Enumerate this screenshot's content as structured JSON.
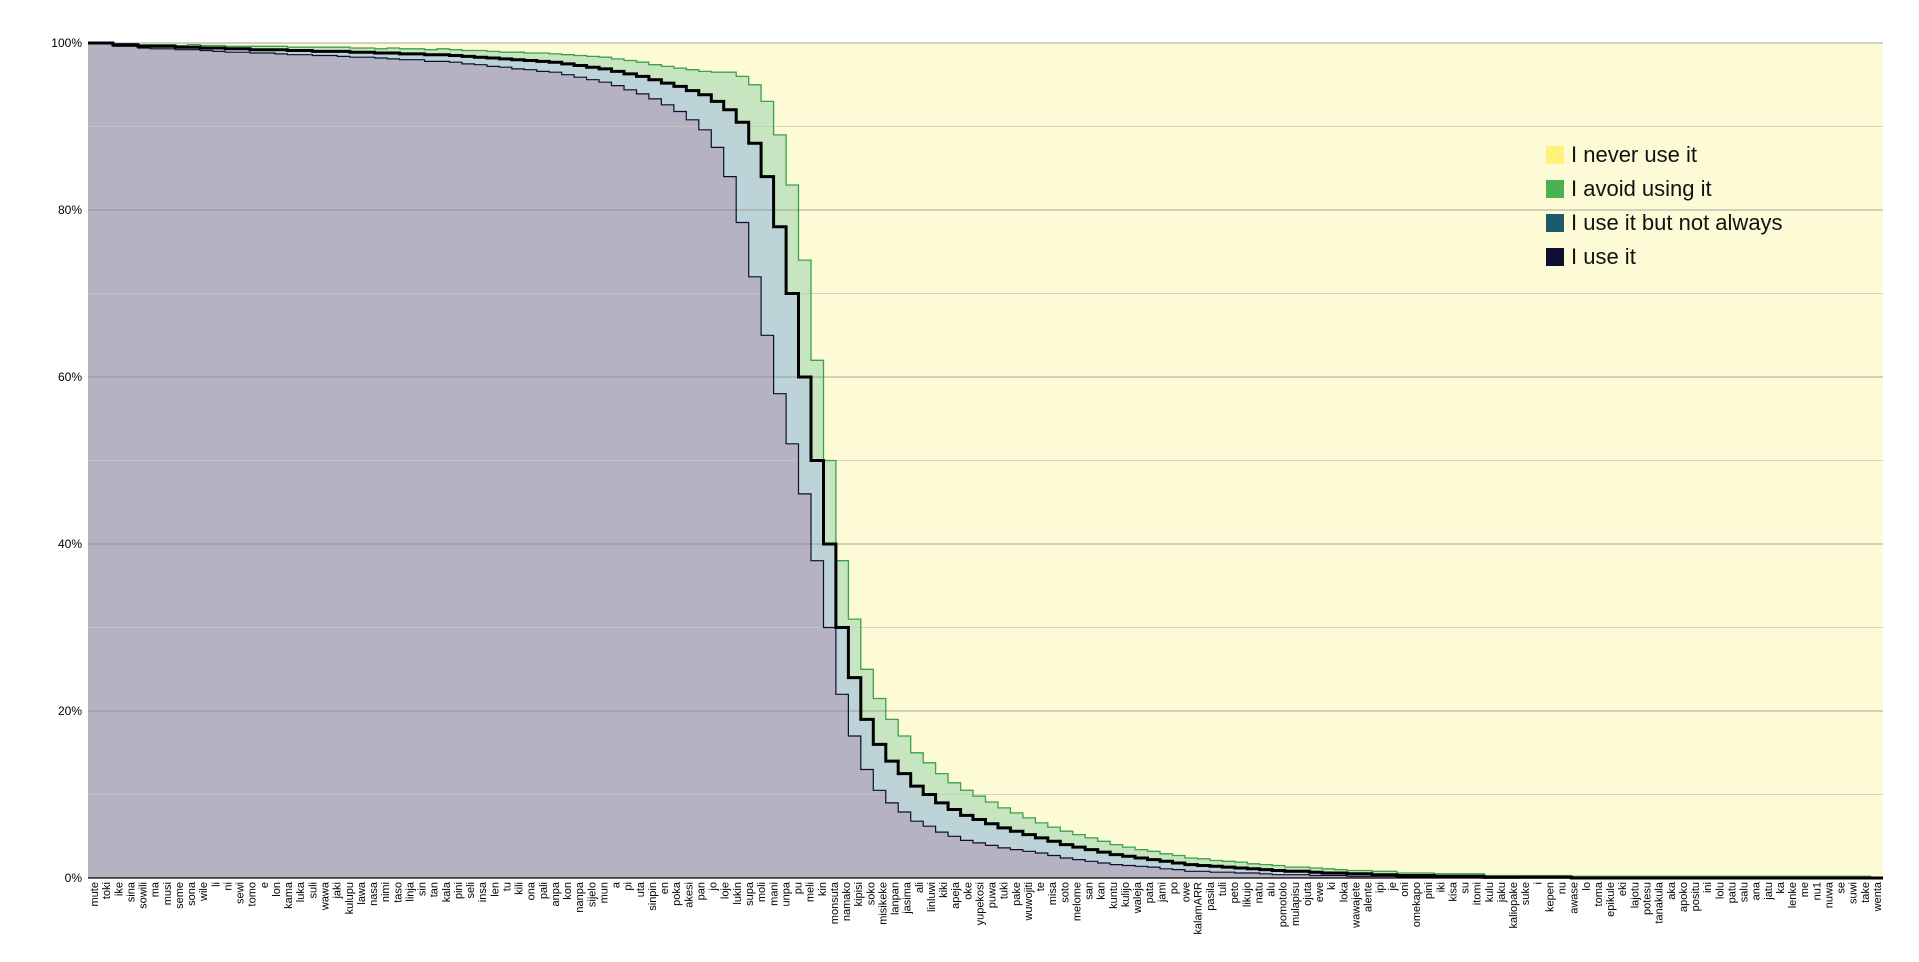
{
  "chart_data": {
    "type": "area",
    "title": "",
    "xlabel": "",
    "ylabel": "",
    "ylim": [
      0,
      100
    ],
    "yticks": [
      "0%",
      "20%",
      "40%",
      "60%",
      "80%",
      "100%"
    ],
    "grid": true,
    "legend_position": "top-right",
    "categories": [
      "mute",
      "toki",
      "ike",
      "sina",
      "sowili",
      "ma",
      "musi",
      "seme",
      "sona",
      "wile",
      "li",
      "ni",
      "sewi",
      "tomo",
      "e",
      "lon",
      "kama",
      "luka",
      "suli",
      "wawa",
      "jaki",
      "kulupu",
      "lawa",
      "nasa",
      "nimi",
      "taso",
      "linja",
      "sin",
      "tan",
      "kala",
      "pini",
      "seli",
      "insa",
      "len",
      "tu",
      "kili",
      "ona",
      "pali",
      "anpa",
      "kon",
      "nanpa",
      "sijelo",
      "mun",
      "a",
      "pi",
      "uta",
      "sinpin",
      "en",
      "poka",
      "akesi",
      "pan",
      "jo",
      "loje",
      "lukin",
      "supa",
      "moli",
      "mani",
      "unpa",
      "pu",
      "meli",
      "kin",
      "monsuta",
      "namako",
      "kipisi",
      "soko",
      "misikeke",
      "lanpan",
      "jasima",
      "ali",
      "linluwi",
      "kiki",
      "apeja",
      "oke",
      "yupekosi",
      "puwa",
      "tuki",
      "pake",
      "wuwojiti",
      "te",
      "misa",
      "soto",
      "melome",
      "san",
      "kan",
      "kuntu",
      "kulijo",
      "waleja",
      "pata",
      "jami",
      "po",
      "owe",
      "kalamARR",
      "pasila",
      "tuli",
      "peto",
      "likujo",
      "natu",
      "alu",
      "pomotolo",
      "mulapisu",
      "ojuta",
      "ewe",
      "ki",
      "loka",
      "wawajete",
      "alente",
      "ipi",
      "je",
      "oni",
      "omekapo",
      "pini",
      "iki",
      "kisa",
      "su",
      "itomi",
      "kulu",
      "jaku",
      "kaliopake",
      "suke",
      "i",
      "kepen",
      "nu",
      "awase",
      "lo",
      "toma",
      "epikule",
      "eki",
      "lajotu",
      "potesu",
      "tanakula",
      "aka",
      "apoko",
      "positu",
      "ini",
      "lolu",
      "patu",
      "salu",
      "ana",
      "jatu",
      "ka",
      "lenke",
      "me",
      "nu1",
      "nuwa",
      "se",
      "suwi",
      "take",
      "wenta"
    ],
    "series": [
      {
        "name": "I never use it",
        "color": "#ffff88"
      },
      {
        "name": "I avoid using it",
        "color": "#4caf50"
      },
      {
        "name": "I use it but not always",
        "color": "#1e5a6e"
      },
      {
        "name": "I use it",
        "color": "#0e0e30"
      }
    ],
    "use_curve": [
      100,
      100,
      99.8,
      99.8,
      99.6,
      99.6,
      99.6,
      99.5,
      99.5,
      99.4,
      99.4,
      99.3,
      99.3,
      99.2,
      99.2,
      99.2,
      99.1,
      99.1,
      99,
      99,
      99,
      98.9,
      98.9,
      98.8,
      98.8,
      98.7,
      98.7,
      98.6,
      98.6,
      98.5,
      98.4,
      98.3,
      98.2,
      98.1,
      98,
      97.9,
      97.8,
      97.7,
      97.5,
      97.3,
      97.1,
      96.9,
      96.6,
      96.3,
      96,
      95.6,
      95.2,
      94.8,
      94.3,
      93.8,
      93,
      92,
      90.5,
      88,
      84,
      78,
      70,
      60,
      50,
      40,
      30,
      24,
      19,
      16,
      14,
      12.5,
      11,
      10,
      9,
      8.2,
      7.5,
      7,
      6.5,
      6,
      5.6,
      5.2,
      4.8,
      4.4,
      4,
      3.7,
      3.4,
      3.1,
      2.8,
      2.6,
      2.4,
      2.2,
      2,
      1.8,
      1.6,
      1.5,
      1.4,
      1.3,
      1.2,
      1.1,
      1,
      0.9,
      0.8,
      0.8,
      0.7,
      0.6,
      0.6,
      0.5,
      0.5,
      0.4,
      0.4,
      0.3,
      0.3,
      0.3,
      0.2,
      0.2,
      0.2,
      0.2,
      0.1,
      0.1,
      0.1,
      0.1,
      0.1,
      0.1,
      0.1,
      0,
      0,
      0,
      0,
      0,
      0,
      0,
      0,
      0,
      0,
      0,
      0,
      0,
      0,
      0,
      0,
      0,
      0,
      0,
      0,
      0,
      0,
      0,
      0,
      0,
      0
    ],
    "avoid_offset": [
      0,
      0,
      0.1,
      0.1,
      0.2,
      0.2,
      0.2,
      0.2,
      0.3,
      0.3,
      0.3,
      0.3,
      0.3,
      0.4,
      0.4,
      0.4,
      0.4,
      0.4,
      0.5,
      0.5,
      0.5,
      0.5,
      0.5,
      0.5,
      0.6,
      0.6,
      0.6,
      0.6,
      0.7,
      0.7,
      0.7,
      0.8,
      0.8,
      0.8,
      0.9,
      0.9,
      1,
      1,
      1.1,
      1.2,
      1.3,
      1.4,
      1.5,
      1.6,
      1.7,
      1.8,
      2,
      2.2,
      2.5,
      2.8,
      3.5,
      4.5,
      5.5,
      7,
      9,
      11,
      13,
      14,
      12,
      10,
      8,
      7,
      6,
      5.5,
      5,
      4.5,
      4,
      3.8,
      3.5,
      3.2,
      3,
      2.8,
      2.6,
      2.4,
      2.2,
      2,
      1.8,
      1.7,
      1.6,
      1.5,
      1.4,
      1.3,
      1.2,
      1.1,
      1,
      1,
      0.9,
      0.9,
      0.8,
      0.8,
      0.7,
      0.7,
      0.7,
      0.6,
      0.6,
      0.6,
      0.5,
      0.5,
      0.5,
      0.5,
      0.4,
      0.4,
      0.4,
      0.4,
      0.4,
      0.3,
      0.3,
      0.3,
      0.3,
      0.3,
      0.3,
      0.3,
      0.2,
      0.2,
      0.2,
      0.2,
      0.2,
      0.2,
      0.2,
      0.2,
      0.2,
      0.2,
      0.2,
      0.2,
      0.2,
      0.2,
      0.2,
      0.2,
      0.2,
      0.2,
      0.2,
      0.2,
      0.2,
      0.2,
      0.2,
      0.2,
      0.2,
      0.2,
      0.2,
      0.2,
      0.2,
      0.2,
      0.2
    ],
    "low_offset": [
      0,
      0,
      0.2,
      0.2,
      0.2,
      0.3,
      0.3,
      0.3,
      0.3,
      0.3,
      0.4,
      0.4,
      0.4,
      0.4,
      0.4,
      0.5,
      0.5,
      0.5,
      0.5,
      0.5,
      0.6,
      0.6,
      0.6,
      0.6,
      0.7,
      0.7,
      0.7,
      0.8,
      0.8,
      0.8,
      0.9,
      0.9,
      1,
      1,
      1.1,
      1.1,
      1.2,
      1.2,
      1.3,
      1.4,
      1.5,
      1.6,
      1.7,
      1.9,
      2.1,
      2.3,
      2.6,
      3,
      3.5,
      4.2,
      5.5,
      8,
      12,
      16,
      19,
      20,
      18,
      14,
      12,
      10,
      8,
      7,
      6,
      5.5,
      5,
      4.6,
      4.2,
      3.8,
      3.5,
      3.2,
      3,
      2.8,
      2.6,
      2.4,
      2.2,
      2,
      1.8,
      1.7,
      1.6,
      1.5,
      1.4,
      1.3,
      1.2,
      1.1,
      1,
      0.9,
      0.9,
      0.8,
      0.8,
      0.7,
      0.7,
      0.6,
      0.6,
      0.5,
      0.5,
      0.5,
      0.4,
      0.4,
      0.4,
      0.3,
      0.3,
      0.3,
      0.3,
      0.2,
      0.2,
      0.2,
      0.2,
      0.2,
      0.1,
      0.1,
      0.1,
      0.1,
      0.1,
      0.1,
      0.1,
      0,
      0,
      0,
      0,
      0,
      0,
      0,
      0,
      0,
      0,
      0,
      0,
      0,
      0,
      0,
      0,
      0,
      0,
      0,
      0,
      0,
      0,
      0,
      0,
      0,
      0,
      0,
      0,
      0,
      0,
      0
    ]
  }
}
